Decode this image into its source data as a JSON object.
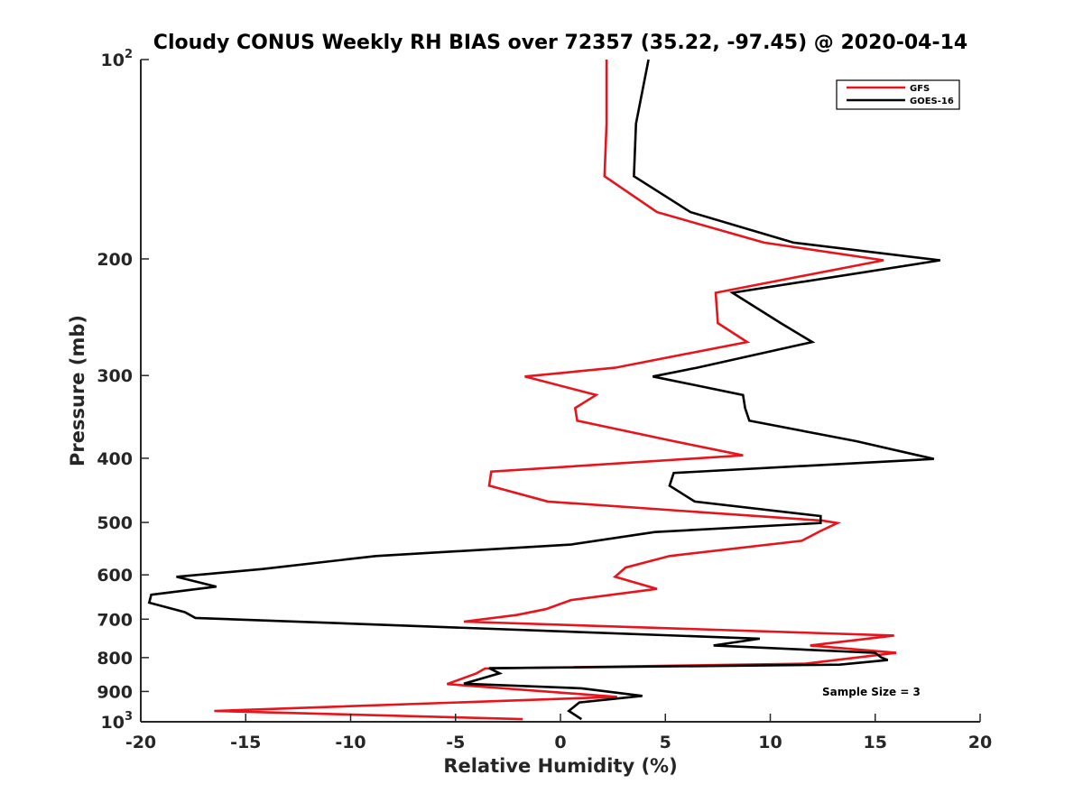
{
  "chart_data": {
    "type": "line",
    "title": "Cloudy CONUS Weekly RH BIAS over 72357 (35.22, -97.45) @ 2020-04-14",
    "xlabel": "Relative Humidity (%)",
    "ylabel": "Pressure (mb)",
    "xlim": [
      -20,
      20
    ],
    "ylim": [
      100,
      1000
    ],
    "y_scale": "log",
    "y_reversed": true,
    "grid": false,
    "legend_position": "top-right",
    "annotation": "Sample Size = 3",
    "x_ticks": [
      "-20",
      "-15",
      "-10",
      "-5",
      "0",
      "5",
      "10",
      "15",
      "20"
    ],
    "y_ticks": [
      {
        "value": 100,
        "base": "10",
        "exp": "2"
      },
      {
        "value": 200,
        "label": "200"
      },
      {
        "value": 300,
        "label": "300"
      },
      {
        "value": 400,
        "label": "400"
      },
      {
        "value": 500,
        "label": "500"
      },
      {
        "value": 600,
        "label": "600"
      },
      {
        "value": 700,
        "label": "700"
      },
      {
        "value": 800,
        "label": "800"
      },
      {
        "value": 900,
        "label": "900"
      },
      {
        "value": 1000,
        "base": "10",
        "exp": "3"
      }
    ],
    "series": [
      {
        "name": "GFS",
        "color": "#e8141b",
        "points": [
          [
            2.2,
            100
          ],
          [
            2.2,
            125
          ],
          [
            2.1,
            150
          ],
          [
            4.6,
            170
          ],
          [
            9.7,
            189
          ],
          [
            15.4,
            201
          ],
          [
            7.4,
            225
          ],
          [
            7.5,
            250
          ],
          [
            8.9,
            267
          ],
          [
            2.6,
            292
          ],
          [
            -1.7,
            301
          ],
          [
            1.7,
            321
          ],
          [
            0.7,
            336
          ],
          [
            0.8,
            351
          ],
          [
            5.4,
            377
          ],
          [
            8.7,
            396
          ],
          [
            -3.3,
            419
          ],
          [
            -3.4,
            440
          ],
          [
            -0.6,
            465
          ],
          [
            12.5,
            497
          ],
          [
            13.2,
            501
          ],
          [
            12.4,
            515
          ],
          [
            11.5,
            533
          ],
          [
            5.2,
            562
          ],
          [
            3.1,
            585
          ],
          [
            2.6,
            604
          ],
          [
            4.6,
            630
          ],
          [
            0.5,
            655
          ],
          [
            -0.7,
            676
          ],
          [
            -2.1,
            690
          ],
          [
            -4.6,
            706
          ],
          [
            15.9,
            741
          ],
          [
            11.9,
            767
          ],
          [
            16.0,
            787
          ],
          [
            11.7,
            817
          ],
          [
            -3.6,
            831
          ],
          [
            -4.0,
            845
          ],
          [
            -5.4,
            877
          ],
          [
            2.7,
            917
          ],
          [
            -16.5,
            963
          ],
          [
            -1.8,
            991
          ]
        ]
      },
      {
        "name": "GOES-16",
        "color": "#000000",
        "points": [
          [
            4.2,
            100
          ],
          [
            3.6,
            125
          ],
          [
            3.5,
            150
          ],
          [
            6.2,
            170
          ],
          [
            11.1,
            189
          ],
          [
            18.1,
            201
          ],
          [
            8.2,
            225
          ],
          [
            10.5,
            250
          ],
          [
            12.0,
            267
          ],
          [
            6.5,
            292
          ],
          [
            4.4,
            301
          ],
          [
            8.7,
            321
          ],
          [
            8.8,
            336
          ],
          [
            9.0,
            351
          ],
          [
            14.1,
            377
          ],
          [
            17.8,
            401
          ],
          [
            5.4,
            421
          ],
          [
            5.2,
            440
          ],
          [
            6.4,
            465
          ],
          [
            12.4,
            489
          ],
          [
            12.4,
            501
          ],
          [
            4.5,
            517
          ],
          [
            0.5,
            540
          ],
          [
            -8.8,
            562
          ],
          [
            -14.2,
            588
          ],
          [
            -18.3,
            604
          ],
          [
            -16.4,
            625
          ],
          [
            -19.5,
            643
          ],
          [
            -19.6,
            661
          ],
          [
            -17.9,
            683
          ],
          [
            -17.4,
            697
          ],
          [
            9.5,
            749
          ],
          [
            7.3,
            767
          ],
          [
            15.0,
            787
          ],
          [
            15.3,
            800
          ],
          [
            15.6,
            807
          ],
          [
            13.3,
            820
          ],
          [
            -3.4,
            830
          ],
          [
            -2.9,
            845
          ],
          [
            -4.6,
            876
          ],
          [
            1.0,
            890
          ],
          [
            3.9,
            914
          ],
          [
            0.9,
            935
          ],
          [
            0.4,
            963
          ],
          [
            1.0,
            991
          ]
        ]
      }
    ]
  }
}
